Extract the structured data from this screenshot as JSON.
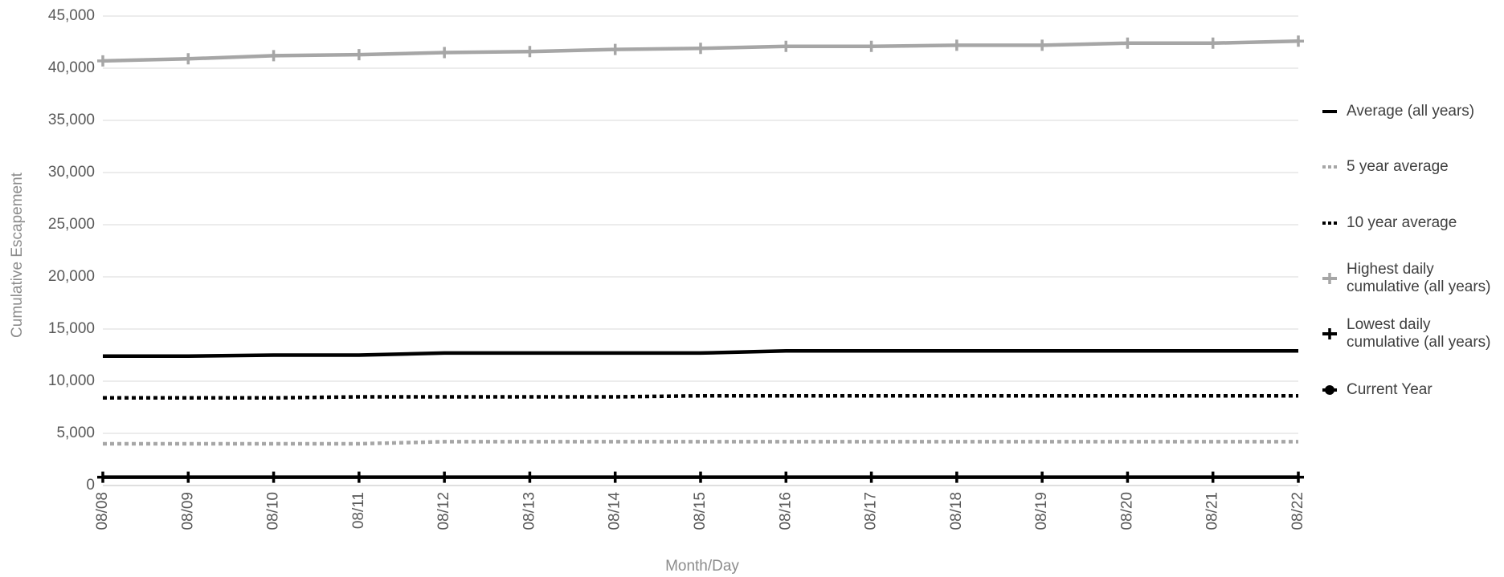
{
  "chart_data": {
    "type": "line",
    "xlabel": "Month/Day",
    "ylabel": "Cumulative Escapement",
    "categories": [
      "08/08",
      "08/09",
      "08/10",
      "08/11",
      "08/12",
      "08/13",
      "08/14",
      "08/15",
      "08/16",
      "08/17",
      "08/18",
      "08/19",
      "08/20",
      "08/21",
      "08/22"
    ],
    "ylim": [
      0,
      45000
    ],
    "yticks": [
      0,
      {
        "value": 5000,
        "label": "5,000"
      },
      {
        "value": 10000,
        "label": "10,000"
      },
      {
        "value": 15000,
        "label": "15,000"
      },
      {
        "value": 20000,
        "label": "20,000"
      },
      {
        "value": 25000,
        "label": "25,000"
      },
      {
        "value": 30000,
        "label": "30,000"
      },
      {
        "value": 35000,
        "label": "35,000"
      },
      {
        "value": 40000,
        "label": "40,000"
      },
      {
        "value": 45000,
        "label": "45,000"
      }
    ],
    "grid": true,
    "legend": "right",
    "series": [
      {
        "name": "Average (all years)",
        "color": "#000000",
        "dash": false,
        "marker": "none",
        "values": [
          12400,
          12400,
          12500,
          12500,
          12700,
          12700,
          12700,
          12700,
          12900,
          12900,
          12900,
          12900,
          12900,
          12900,
          12900
        ]
      },
      {
        "name": "5 year average",
        "color": "#a6a6a6",
        "dash": true,
        "marker": "none",
        "values": [
          4000,
          4000,
          4000,
          4000,
          4200,
          4200,
          4200,
          4200,
          4200,
          4200,
          4200,
          4200,
          4200,
          4200,
          4200
        ]
      },
      {
        "name": "10 year average",
        "color": "#000000",
        "dash": true,
        "marker": "none",
        "values": [
          8400,
          8400,
          8400,
          8500,
          8500,
          8500,
          8500,
          8600,
          8600,
          8600,
          8600,
          8600,
          8600,
          8600,
          8600
        ]
      },
      {
        "name": "Highest daily cumulative (all years)",
        "color": "#a6a6a6",
        "dash": false,
        "marker": "plus",
        "values": [
          40700,
          40900,
          41200,
          41300,
          41500,
          41600,
          41800,
          41900,
          42100,
          42100,
          42200,
          42200,
          42400,
          42400,
          42600
        ]
      },
      {
        "name": "Lowest daily cumulative (all years)",
        "color": "#000000",
        "dash": false,
        "marker": "plus",
        "values": [
          800,
          800,
          800,
          800,
          800,
          800,
          800,
          800,
          800,
          800,
          800,
          800,
          800,
          800,
          800
        ]
      },
      {
        "name": "Current Year",
        "color": "#000000",
        "dash": false,
        "marker": "circle",
        "values": [
          null,
          null,
          null,
          null,
          null,
          null,
          null,
          null,
          null,
          null,
          null,
          null,
          null,
          null,
          null
        ]
      }
    ]
  }
}
